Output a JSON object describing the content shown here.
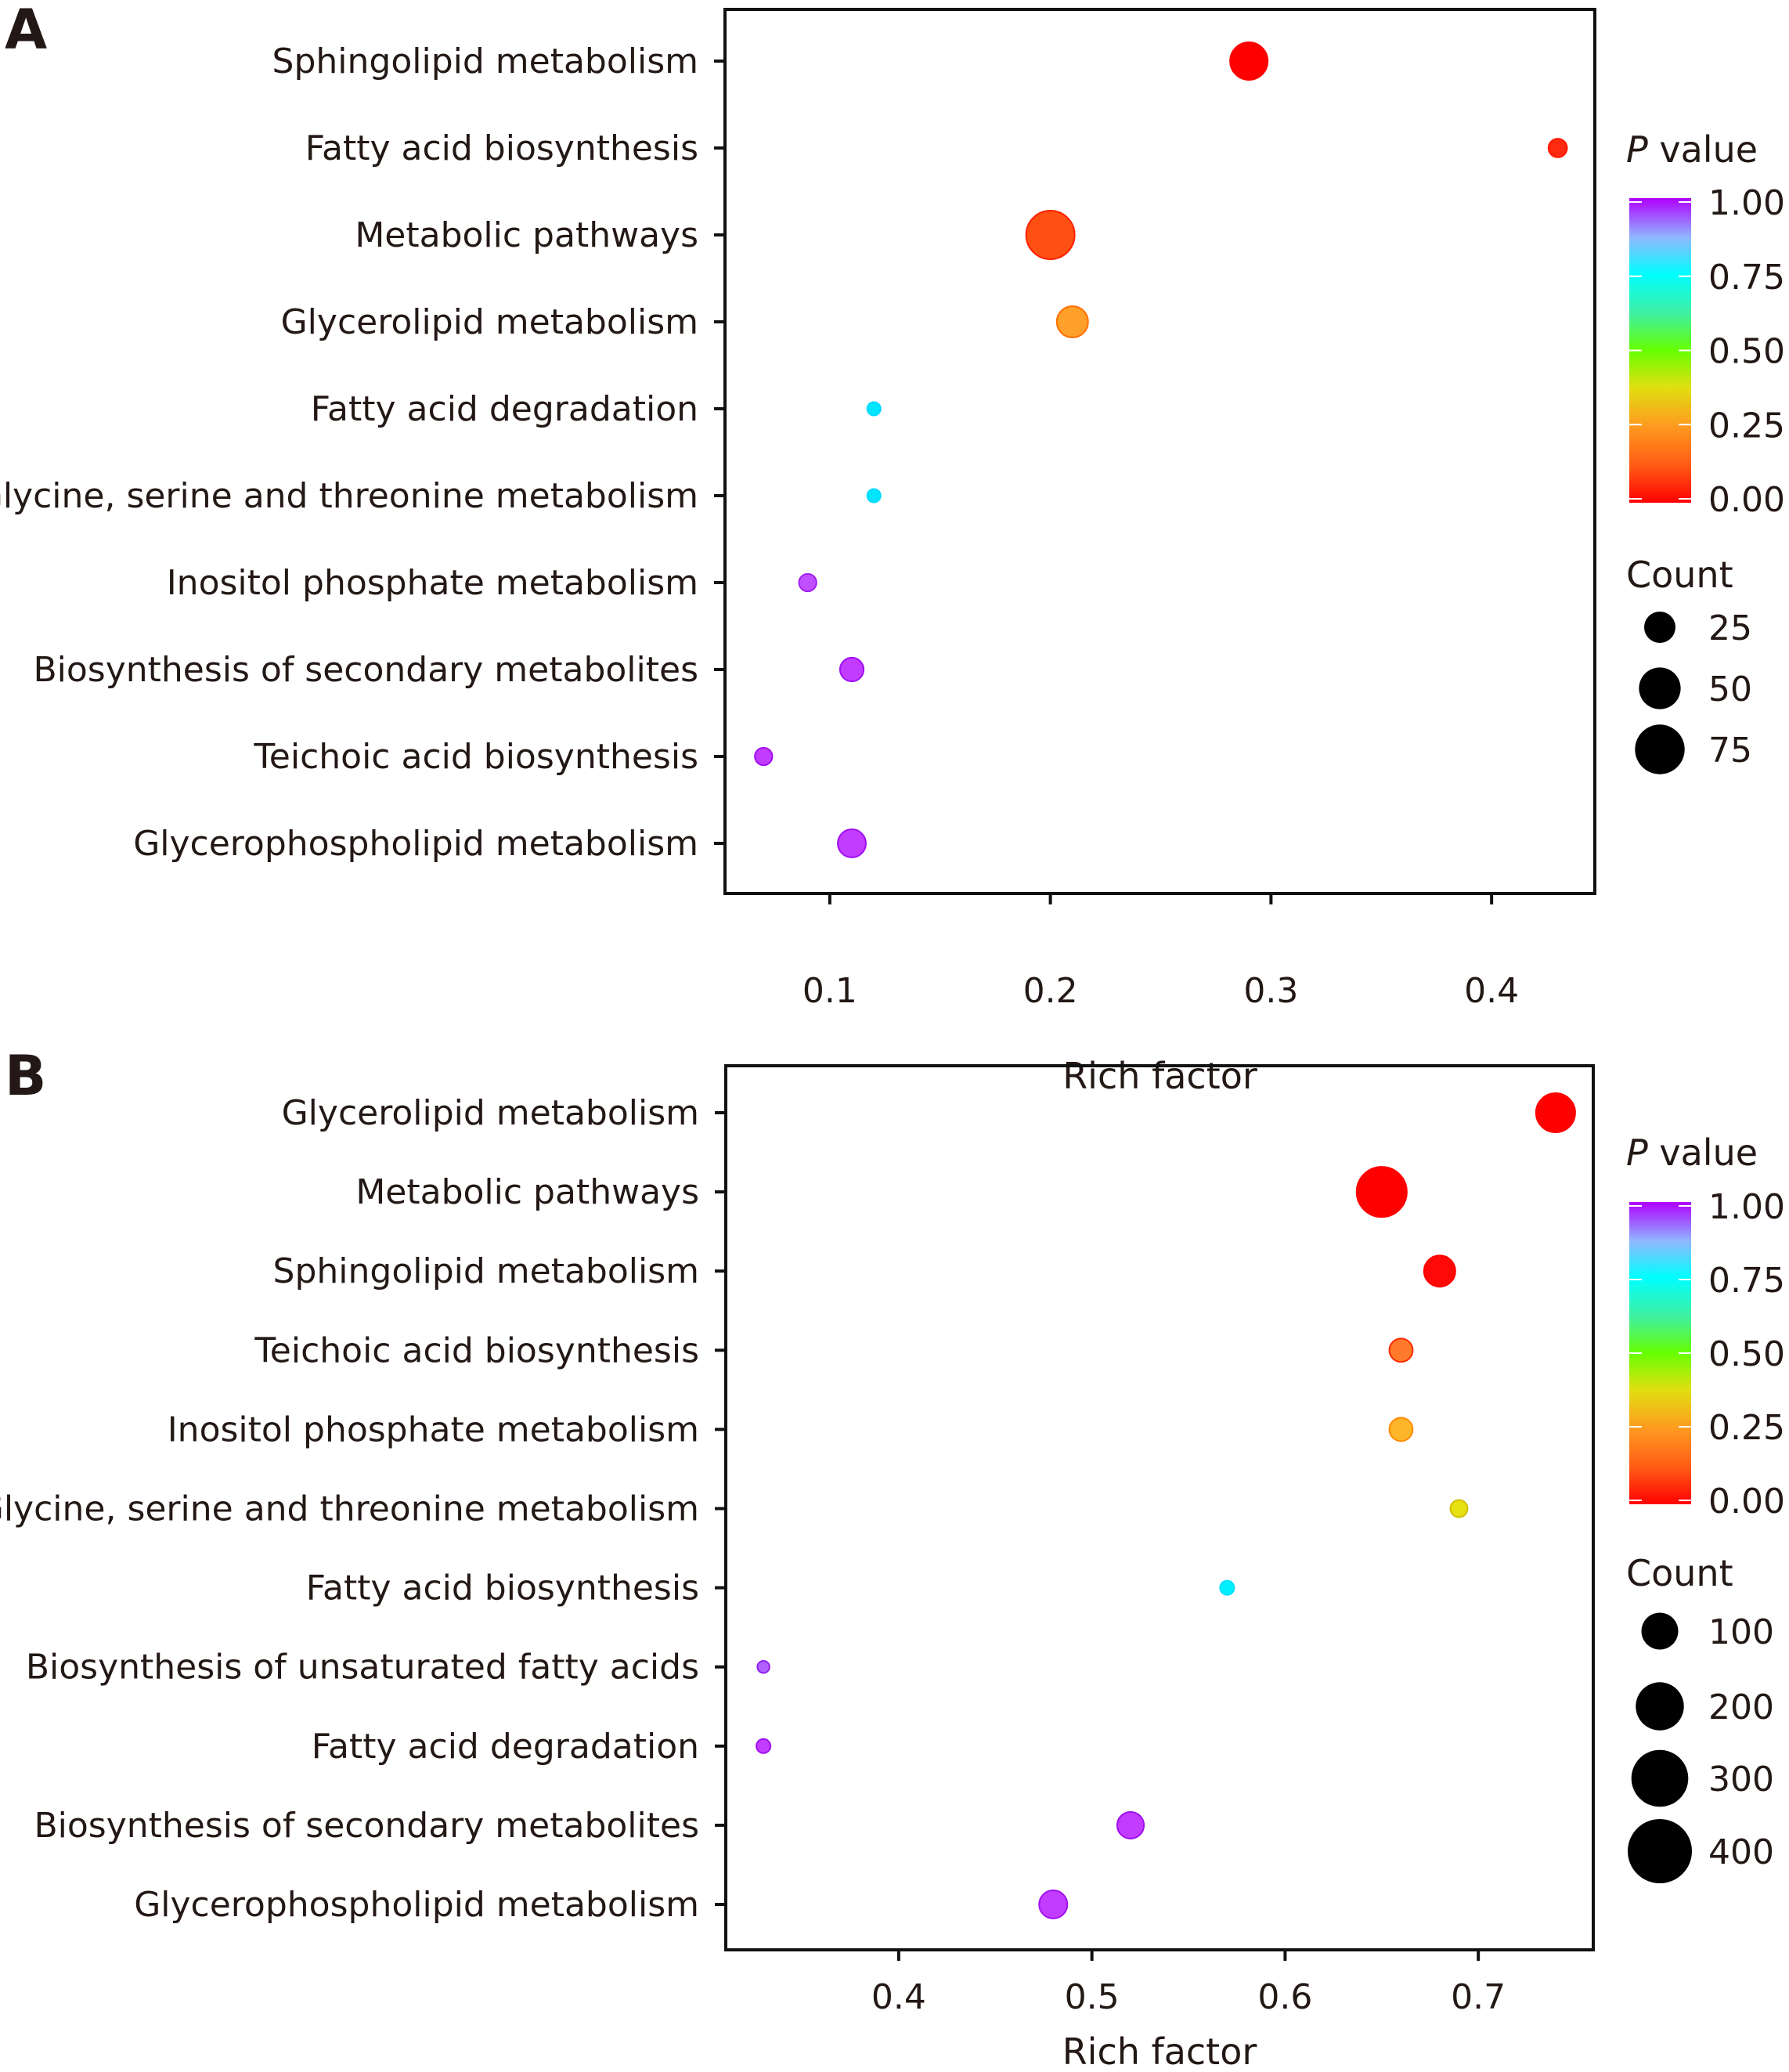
{
  "figure": {
    "panels": [
      "A",
      "B"
    ]
  },
  "chart_data": [
    {
      "panel": "A",
      "type": "scatter",
      "title": "",
      "xlabel": "Rich factor",
      "ylabel": "",
      "xlim": [
        0.0525,
        0.4468
      ],
      "xticks": [
        0.1,
        0.2,
        0.3,
        0.4
      ],
      "xtick_labels": [
        "0.1",
        "0.2",
        "0.3",
        "0.4"
      ],
      "grid": false,
      "categories": [
        "Sphingolipid metabolism",
        "Fatty acid biosynthesis",
        "Metabolic pathways",
        "Glycerolipid metabolism",
        "Fatty acid degradation",
        "Glycine, serine and threonine metabolism",
        "Inositol phosphate metabolism",
        "Biosynthesis of secondary metabolites",
        "Teichoic acid biosynthesis",
        "Glycerophospholipid metabolism"
      ],
      "points": [
        {
          "category": "Sphingolipid metabolism",
          "rich_factor": 0.29,
          "p_value": 0.0,
          "count": 39,
          "color": "#ff0000",
          "stroke": "#ff0000"
        },
        {
          "category": "Fatty acid biosynthesis",
          "rich_factor": 0.43,
          "p_value": 0.03,
          "count": 6,
          "color": "#ff2a10",
          "stroke": "#ff1a00"
        },
        {
          "category": "Metabolic pathways",
          "rich_factor": 0.2,
          "p_value": 0.08,
          "count": 71,
          "color": "#ff5014",
          "stroke": "#ff2000"
        },
        {
          "category": "Glycerolipid metabolism",
          "rich_factor": 0.21,
          "p_value": 0.22,
          "count": 25,
          "color": "#ffa02a",
          "stroke": "#ff7000"
        },
        {
          "category": "Fatty acid degradation",
          "rich_factor": 0.12,
          "p_value": 0.77,
          "count": 2,
          "color": "#00e5ff",
          "stroke": "#00d8ff"
        },
        {
          "category": "Glycine, serine and threonine metabolism",
          "rich_factor": 0.12,
          "p_value": 0.77,
          "count": 2,
          "color": "#00e5ff",
          "stroke": "#00d8ff"
        },
        {
          "category": "Inositol phosphate metabolism",
          "rich_factor": 0.09,
          "p_value": 0.99,
          "count": 5,
          "color": "#c050ff",
          "stroke": "#a020f0"
        },
        {
          "category": "Biosynthesis of secondary metabolites",
          "rich_factor": 0.11,
          "p_value": 1.0,
          "count": 12,
          "color": "#c23cff",
          "stroke": "#a010f0"
        },
        {
          "category": "Teichoic acid biosynthesis",
          "rich_factor": 0.07,
          "p_value": 1.0,
          "count": 5,
          "color": "#c23cff",
          "stroke": "#a010f0"
        },
        {
          "category": "Glycerophospholipid metabolism",
          "rich_factor": 0.11,
          "p_value": 1.0,
          "count": 19,
          "color": "#c23cff",
          "stroke": "#a010f0"
        }
      ],
      "color_legend": {
        "title_italic": "P",
        "title_rest": " value",
        "range": [
          0.0,
          1.0
        ],
        "ticks": [
          "1.00",
          "0.75",
          "0.50",
          "0.25",
          "0.00"
        ],
        "gradient_stops": [
          {
            "value": 0.0,
            "color": "#ff0000"
          },
          {
            "value": 0.12,
            "color": "#ff5a14"
          },
          {
            "value": 0.25,
            "color": "#ff9a20"
          },
          {
            "value": 0.38,
            "color": "#e0e010"
          },
          {
            "value": 0.5,
            "color": "#66ff00"
          },
          {
            "value": 0.62,
            "color": "#40f0a0"
          },
          {
            "value": 0.75,
            "color": "#00ffff"
          },
          {
            "value": 0.87,
            "color": "#90b8ff"
          },
          {
            "value": 1.0,
            "color": "#b000ff"
          }
        ]
      },
      "size_legend": {
        "title": "Count",
        "values": [
          25,
          50,
          75
        ],
        "labels": [
          "25",
          "50",
          "75"
        ]
      }
    },
    {
      "panel": "B",
      "type": "scatter",
      "title": "",
      "xlabel": "Rich factor",
      "ylabel": "",
      "xlim": [
        0.3105,
        0.7595
      ],
      "xticks": [
        0.4,
        0.5,
        0.6,
        0.7
      ],
      "xtick_labels": [
        "0.4",
        "0.5",
        "0.6",
        "0.7"
      ],
      "grid": false,
      "categories": [
        "Glycerolipid metabolism",
        "Metabolic pathways",
        "Sphingolipid metabolism",
        "Teichoic acid biosynthesis",
        "Inositol phosphate metabolism",
        "Glycine, serine and threonine metabolism",
        "Fatty acid biosynthesis",
        "Biosynthesis of unsaturated fatty acids",
        "Fatty acid degradation",
        "Biosynthesis of secondary metabolites",
        "Glycerophospholipid metabolism"
      ],
      "points": [
        {
          "category": "Glycerolipid metabolism",
          "rich_factor": 0.74,
          "p_value": 0.0,
          "count": 118,
          "color": "#ff0000",
          "stroke": "#ff0000"
        },
        {
          "category": "Metabolic pathways",
          "rich_factor": 0.65,
          "p_value": 0.0,
          "count": 221,
          "color": "#ff0000",
          "stroke": "#ff0000"
        },
        {
          "category": "Sphingolipid metabolism",
          "rich_factor": 0.68,
          "p_value": 0.01,
          "count": 64,
          "color": "#ff0808",
          "stroke": "#ff0000"
        },
        {
          "category": "Teichoic acid biosynthesis",
          "rich_factor": 0.66,
          "p_value": 0.12,
          "count": 26,
          "color": "#ff7a2a",
          "stroke": "#ff2a00"
        },
        {
          "category": "Inositol phosphate metabolism",
          "rich_factor": 0.66,
          "p_value": 0.25,
          "count": 26,
          "color": "#ffb52a",
          "stroke": "#ff8a00"
        },
        {
          "category": "Glycine, serine and threonine metabolism",
          "rich_factor": 0.69,
          "p_value": 0.38,
          "count": 8,
          "color": "#e6e010",
          "stroke": "#d0c000"
        },
        {
          "category": "Fatty acid biosynthesis",
          "rich_factor": 0.57,
          "p_value": 0.76,
          "count": 3,
          "color": "#00f0ff",
          "stroke": "#00e0ff"
        },
        {
          "category": "Biosynthesis of unsaturated fatty acids",
          "rich_factor": 0.33,
          "p_value": 0.98,
          "count": 1,
          "color": "#b060ff",
          "stroke": "#9020f0"
        },
        {
          "category": "Fatty acid degradation",
          "rich_factor": 0.33,
          "p_value": 1.0,
          "count": 3,
          "color": "#c23cff",
          "stroke": "#a010f0"
        },
        {
          "category": "Biosynthesis of secondary metabolites",
          "rich_factor": 0.52,
          "p_value": 1.0,
          "count": 40,
          "color": "#c23cff",
          "stroke": "#a010f0"
        },
        {
          "category": "Glycerophospholipid metabolism",
          "rich_factor": 0.48,
          "p_value": 1.0,
          "count": 47,
          "color": "#c23cff",
          "stroke": "#a010f0"
        }
      ],
      "color_legend": {
        "title_italic": "P",
        "title_rest": " value",
        "range": [
          0.0,
          1.0
        ],
        "ticks": [
          "1.00",
          "0.75",
          "0.50",
          "0.25",
          "0.00"
        ],
        "gradient_stops": [
          {
            "value": 0.0,
            "color": "#ff0000"
          },
          {
            "value": 0.12,
            "color": "#ff5a14"
          },
          {
            "value": 0.25,
            "color": "#ff9a20"
          },
          {
            "value": 0.38,
            "color": "#e0e010"
          },
          {
            "value": 0.5,
            "color": "#66ff00"
          },
          {
            "value": 0.62,
            "color": "#40f0a0"
          },
          {
            "value": 0.75,
            "color": "#00ffff"
          },
          {
            "value": 0.87,
            "color": "#90b8ff"
          },
          {
            "value": 1.0,
            "color": "#b000ff"
          }
        ]
      },
      "size_legend": {
        "title": "Count",
        "values": [
          100,
          200,
          300,
          400
        ],
        "labels": [
          "100",
          "200",
          "300",
          "400"
        ]
      }
    }
  ]
}
